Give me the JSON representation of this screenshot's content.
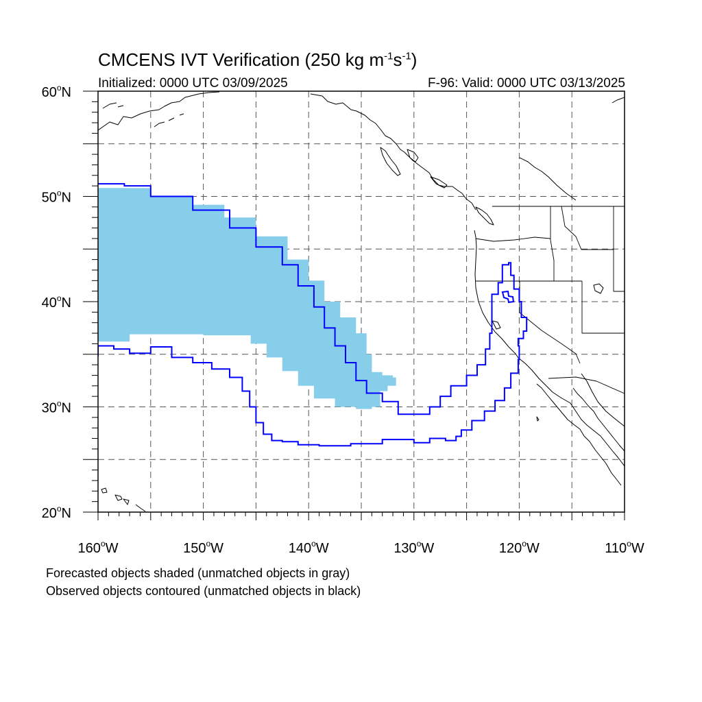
{
  "header": {
    "title_prefix": "CMCENS IVT Verification (250 kg m",
    "title_exp1": "-1",
    "title_mid": "s",
    "title_exp2": "-1",
    "title_suffix": ")",
    "initialized": "Initialized: 0000 UTC 03/09/2025",
    "valid": "F-96: Valid: 0000 UTC 03/13/2025"
  },
  "map": {
    "projection": "cylindrical equidistant",
    "lon_range": [
      -160,
      -110
    ],
    "lat_range": [
      20,
      60
    ],
    "grid": "dashed, every 5 degrees",
    "lat_ticks": [
      {
        "v": 60,
        "t": "60"
      },
      {
        "v": 50,
        "t": "50"
      },
      {
        "v": 40,
        "t": "40"
      },
      {
        "v": 30,
        "t": "30"
      },
      {
        "v": 20,
        "t": "20"
      }
    ],
    "lat_suffix": "N",
    "lon_ticks": [
      {
        "v": -160,
        "t": "160"
      },
      {
        "v": -150,
        "t": "150"
      },
      {
        "v": -140,
        "t": "140"
      },
      {
        "v": -130,
        "t": "130"
      },
      {
        "v": -120,
        "t": "120"
      },
      {
        "v": -110,
        "t": "110"
      }
    ],
    "lon_suffix": "W",
    "colors": {
      "forecast_fill": "#87ceeb",
      "observed_contour": "#0000ff",
      "coast": "#000000",
      "grid": "#555555"
    }
  },
  "forecast_object": {
    "style": "shaded",
    "color": "#87ceeb",
    "outline": [
      [
        -160,
        50.8
      ],
      [
        -155,
        50
      ],
      [
        -151,
        49.2
      ],
      [
        -148,
        48
      ],
      [
        -145,
        46.2
      ],
      [
        -142,
        44
      ],
      [
        -140,
        42
      ],
      [
        -138.5,
        40
      ],
      [
        -137,
        38.5
      ],
      [
        -135.5,
        37
      ],
      [
        -134.5,
        35
      ],
      [
        -134,
        33.3
      ],
      [
        -133,
        33
      ],
      [
        -132,
        32.8
      ],
      [
        -131.7,
        32
      ],
      [
        -132.5,
        31.5
      ],
      [
        -133.2,
        30
      ],
      [
        -134,
        29.8
      ],
      [
        -135.5,
        30
      ],
      [
        -137.5,
        30.8
      ],
      [
        -139.5,
        32
      ],
      [
        -141,
        33.4
      ],
      [
        -142.5,
        34.7
      ],
      [
        -144,
        36
      ],
      [
        -145.5,
        36.8
      ],
      [
        -150,
        36.9
      ],
      [
        -154,
        36.9
      ],
      [
        -157,
        36.2
      ],
      [
        -160,
        35.5
      ]
    ]
  },
  "observed_object": {
    "style": "contoured",
    "color": "#0000ff",
    "outline": [
      [
        -160,
        51.2
      ],
      [
        -157.5,
        51
      ],
      [
        -155,
        50
      ],
      [
        -151,
        48.7
      ],
      [
        -147.5,
        47
      ],
      [
        -145,
        45.2
      ],
      [
        -142.5,
        43.5
      ],
      [
        -141,
        41.5
      ],
      [
        -139.5,
        39.5
      ],
      [
        -138.5,
        37.5
      ],
      [
        -137.5,
        35.8
      ],
      [
        -136.5,
        34.2
      ],
      [
        -135.5,
        32.5
      ],
      [
        -134.5,
        31.3
      ],
      [
        -133,
        30.5
      ],
      [
        -131.5,
        29.3
      ],
      [
        -130,
        29.3
      ],
      [
        -128.5,
        30
      ],
      [
        -127.5,
        31
      ],
      [
        -126.5,
        32
      ],
      [
        -125,
        33
      ],
      [
        -124,
        34
      ],
      [
        -123.2,
        35.5
      ],
      [
        -122.8,
        37
      ],
      [
        -122.6,
        38.8
      ],
      [
        -122.6,
        40.7
      ],
      [
        -122,
        41.8
      ],
      [
        -121.6,
        42.5
      ],
      [
        -121.6,
        43.5
      ],
      [
        -121,
        43.7
      ],
      [
        -120.8,
        42.5
      ],
      [
        -120.5,
        41.2
      ],
      [
        -120,
        40
      ],
      [
        -119.8,
        38.5
      ],
      [
        -119.3,
        37.2
      ],
      [
        -119.6,
        36.5
      ],
      [
        -120.1,
        35.8
      ],
      [
        -120,
        34.5
      ],
      [
        -120.1,
        33.2
      ],
      [
        -120.8,
        31.8
      ],
      [
        -121.4,
        30.6
      ],
      [
        -122.3,
        29.6
      ],
      [
        -123.3,
        28.7
      ],
      [
        -124.5,
        27.8
      ],
      [
        -125.5,
        27.2
      ],
      [
        -126,
        26.8
      ],
      [
        -127,
        27
      ],
      [
        -128.5,
        26.6
      ],
      [
        -130,
        26.9
      ],
      [
        -131.5,
        26.9
      ],
      [
        -133,
        26.5
      ],
      [
        -136,
        26.3
      ],
      [
        -139,
        26.4
      ],
      [
        -141,
        26.7
      ],
      [
        -142.5,
        26.8
      ],
      [
        -143.5,
        27.4
      ],
      [
        -144.3,
        28.5
      ],
      [
        -145,
        30
      ],
      [
        -145.6,
        31.5
      ],
      [
        -146.3,
        32.8
      ],
      [
        -147.5,
        33.6
      ],
      [
        -149.2,
        34.2
      ],
      [
        -151,
        34.7
      ],
      [
        -153,
        35.7
      ],
      [
        -155,
        35.1
      ],
      [
        -157,
        35.5
      ],
      [
        -158.5,
        35.8
      ],
      [
        -160,
        34.8
      ]
    ]
  },
  "footnotes": {
    "forecast": "Forecasted objects shaded (unmatched objects in gray)",
    "observed": "Observed objects contoured (unmatched objects in black)"
  }
}
